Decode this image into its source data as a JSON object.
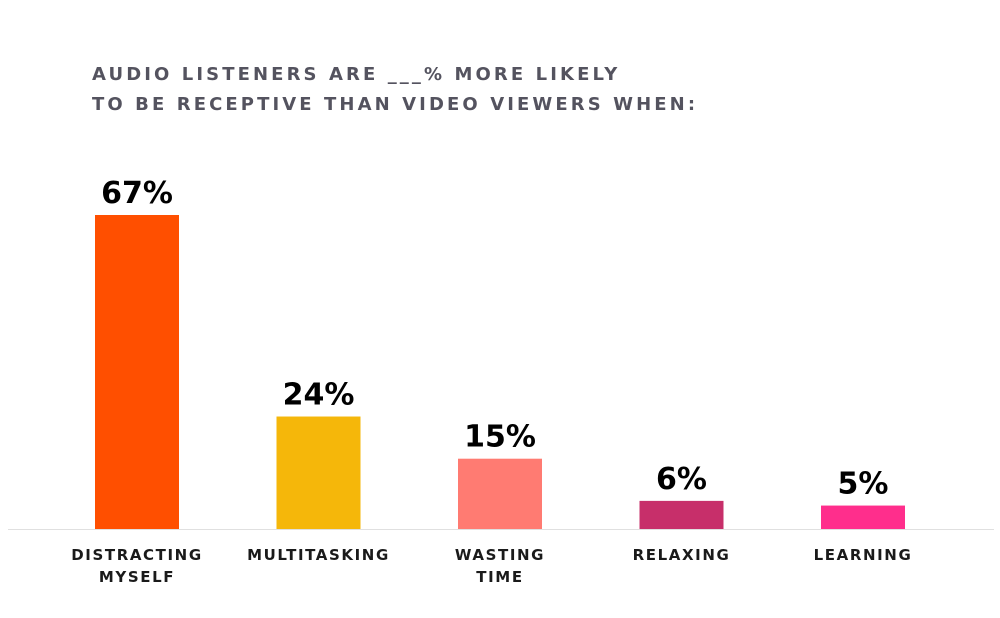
{
  "chart_data": {
    "type": "bar",
    "title_lines": [
      "AUDIO LISTENERS ARE ___% MORE LIKELY",
      "TO BE RECEPTIVE THAN VIDEO VIEWERS WHEN:"
    ],
    "categories": [
      [
        "DISTRACTING",
        "MYSELF"
      ],
      [
        "MULTITASKING"
      ],
      [
        "WASTING",
        "TIME"
      ],
      [
        "RELAXING"
      ],
      [
        "LEARNING"
      ]
    ],
    "values": [
      67,
      24,
      15,
      6,
      5
    ],
    "value_labels": [
      "67%",
      "24%",
      "15%",
      "6%",
      "5%"
    ],
    "colors": [
      "#ff4f00",
      "#f5b70a",
      "#ff7b72",
      "#c72f6a",
      "#ff2e8c"
    ],
    "ylim": [
      0,
      67
    ],
    "grid": false,
    "legend": "none"
  }
}
